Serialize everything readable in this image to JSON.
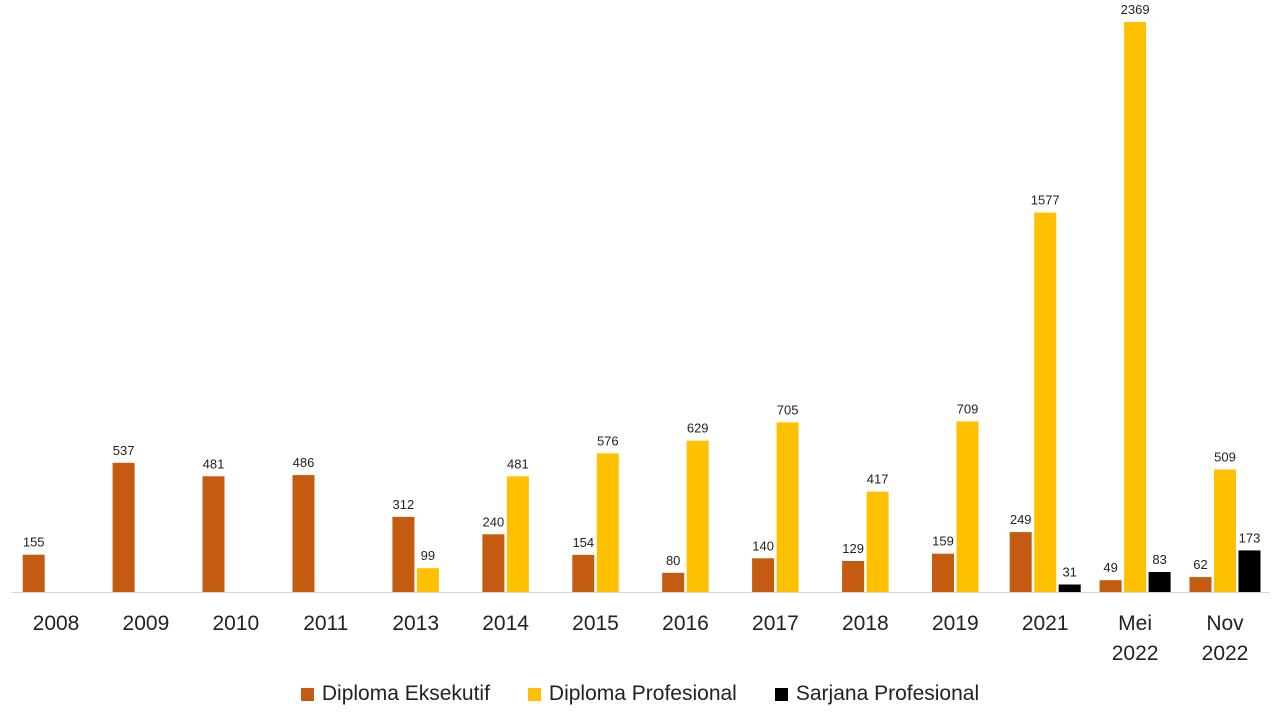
{
  "chart_data": {
    "type": "bar",
    "title": "",
    "xlabel": "",
    "ylabel": "",
    "ylim": [
      0,
      2450
    ],
    "grid": false,
    "legend_position": "bottom",
    "categories": [
      [
        "2008"
      ],
      [
        "2009"
      ],
      [
        "2010"
      ],
      [
        "2011"
      ],
      [
        "2013"
      ],
      [
        "2014"
      ],
      [
        "2015"
      ],
      [
        "2016"
      ],
      [
        "2017"
      ],
      [
        "2018"
      ],
      [
        "2019"
      ],
      [
        "2021"
      ],
      [
        "Mei",
        "2022"
      ],
      [
        "Nov",
        "2022"
      ]
    ],
    "series": [
      {
        "name": "Diploma Eksekutif",
        "color": "#C55A11",
        "values": [
          155,
          537,
          481,
          486,
          312,
          240,
          154,
          80,
          140,
          129,
          159,
          249,
          49,
          62
        ]
      },
      {
        "name": "Diploma Profesional",
        "color": "#FFC000",
        "values": [
          null,
          null,
          null,
          null,
          99,
          481,
          576,
          629,
          705,
          417,
          709,
          1577,
          2369,
          509
        ]
      },
      {
        "name": "Sarjana Profesional",
        "color": "#000000",
        "values": [
          null,
          null,
          null,
          null,
          null,
          null,
          null,
          null,
          null,
          null,
          null,
          31,
          83,
          173
        ]
      }
    ]
  }
}
